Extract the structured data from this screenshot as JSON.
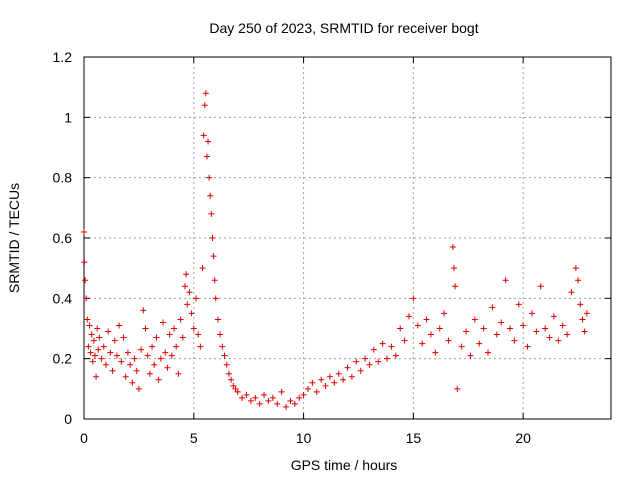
{
  "chart_data": {
    "type": "scatter",
    "title": "Day 250 of 2023, SRMTID for receiver bogt",
    "xlabel": "GPS time / hours",
    "ylabel": "SRMTID / TECUs",
    "xlim": [
      0,
      24
    ],
    "ylim": [
      0,
      1.2
    ],
    "xticks": [
      0,
      5,
      10,
      15,
      20
    ],
    "xtick_labels": [
      "0",
      "5",
      "10",
      "15",
      "20"
    ],
    "yticks": [
      0,
      0.2,
      0.4,
      0.6,
      0.8,
      1,
      1.2
    ],
    "ytick_labels": [
      "0",
      "0.2",
      "0.4",
      "0.6",
      "0.8",
      "1",
      "1.2"
    ],
    "grid": true,
    "marker": "+",
    "color": "#e00000",
    "series": [
      {
        "name": "SRMTID",
        "points": [
          [
            0.0,
            0.62
          ],
          [
            0.02,
            0.52
          ],
          [
            0.05,
            0.46
          ],
          [
            0.1,
            0.4
          ],
          [
            0.15,
            0.33
          ],
          [
            0.2,
            0.24
          ],
          [
            0.25,
            0.31
          ],
          [
            0.3,
            0.22
          ],
          [
            0.35,
            0.28
          ],
          [
            0.4,
            0.19
          ],
          [
            0.45,
            0.26
          ],
          [
            0.5,
            0.21
          ],
          [
            0.55,
            0.14
          ],
          [
            0.6,
            0.3
          ],
          [
            0.65,
            0.23
          ],
          [
            0.7,
            0.27
          ],
          [
            0.8,
            0.2
          ],
          [
            0.9,
            0.24
          ],
          [
            1.0,
            0.18
          ],
          [
            1.1,
            0.29
          ],
          [
            1.2,
            0.22
          ],
          [
            1.3,
            0.16
          ],
          [
            1.4,
            0.26
          ],
          [
            1.5,
            0.21
          ],
          [
            1.6,
            0.31
          ],
          [
            1.7,
            0.19
          ],
          [
            1.8,
            0.27
          ],
          [
            1.9,
            0.14
          ],
          [
            2.0,
            0.22
          ],
          [
            2.1,
            0.18
          ],
          [
            2.2,
            0.12
          ],
          [
            2.3,
            0.2
          ],
          [
            2.4,
            0.16
          ],
          [
            2.5,
            0.1
          ],
          [
            2.6,
            0.23
          ],
          [
            2.7,
            0.36
          ],
          [
            2.8,
            0.3
          ],
          [
            2.9,
            0.21
          ],
          [
            3.0,
            0.15
          ],
          [
            3.1,
            0.24
          ],
          [
            3.2,
            0.18
          ],
          [
            3.3,
            0.27
          ],
          [
            3.4,
            0.13
          ],
          [
            3.5,
            0.2
          ],
          [
            3.6,
            0.32
          ],
          [
            3.7,
            0.22
          ],
          [
            3.8,
            0.17
          ],
          [
            3.9,
            0.28
          ],
          [
            4.0,
            0.21
          ],
          [
            4.1,
            0.3
          ],
          [
            4.2,
            0.24
          ],
          [
            4.3,
            0.15
          ],
          [
            4.4,
            0.33
          ],
          [
            4.5,
            0.27
          ],
          [
            4.6,
            0.44
          ],
          [
            4.65,
            0.48
          ],
          [
            4.7,
            0.38
          ],
          [
            4.8,
            0.42
          ],
          [
            4.9,
            0.35
          ],
          [
            5.0,
            0.3
          ],
          [
            5.1,
            0.4
          ],
          [
            5.2,
            0.28
          ],
          [
            5.3,
            0.24
          ],
          [
            5.4,
            0.5
          ],
          [
            5.45,
            0.94
          ],
          [
            5.5,
            1.04
          ],
          [
            5.55,
            1.08
          ],
          [
            5.6,
            0.87
          ],
          [
            5.65,
            0.92
          ],
          [
            5.7,
            0.8
          ],
          [
            5.75,
            0.74
          ],
          [
            5.8,
            0.68
          ],
          [
            5.85,
            0.6
          ],
          [
            5.9,
            0.54
          ],
          [
            5.95,
            0.46
          ],
          [
            6.0,
            0.4
          ],
          [
            6.1,
            0.33
          ],
          [
            6.2,
            0.28
          ],
          [
            6.3,
            0.24
          ],
          [
            6.4,
            0.21
          ],
          [
            6.5,
            0.18
          ],
          [
            6.6,
            0.15
          ],
          [
            6.7,
            0.13
          ],
          [
            6.8,
            0.11
          ],
          [
            6.9,
            0.1
          ],
          [
            7.0,
            0.09
          ],
          [
            7.2,
            0.07
          ],
          [
            7.4,
            0.08
          ],
          [
            7.6,
            0.06
          ],
          [
            7.8,
            0.07
          ],
          [
            8.0,
            0.05
          ],
          [
            8.2,
            0.08
          ],
          [
            8.4,
            0.06
          ],
          [
            8.6,
            0.07
          ],
          [
            8.8,
            0.05
          ],
          [
            9.0,
            0.09
          ],
          [
            9.2,
            0.04
          ],
          [
            9.4,
            0.06
          ],
          [
            9.6,
            0.05
          ],
          [
            9.8,
            0.07
          ],
          [
            10.0,
            0.08
          ],
          [
            10.2,
            0.1
          ],
          [
            10.4,
            0.12
          ],
          [
            10.6,
            0.09
          ],
          [
            10.8,
            0.13
          ],
          [
            11.0,
            0.11
          ],
          [
            11.2,
            0.14
          ],
          [
            11.4,
            0.12
          ],
          [
            11.6,
            0.15
          ],
          [
            11.8,
            0.13
          ],
          [
            12.0,
            0.17
          ],
          [
            12.2,
            0.14
          ],
          [
            12.4,
            0.19
          ],
          [
            12.6,
            0.16
          ],
          [
            12.8,
            0.2
          ],
          [
            13.0,
            0.18
          ],
          [
            13.2,
            0.23
          ],
          [
            13.4,
            0.19
          ],
          [
            13.6,
            0.25
          ],
          [
            13.8,
            0.2
          ],
          [
            14.0,
            0.24
          ],
          [
            14.2,
            0.21
          ],
          [
            14.4,
            0.3
          ],
          [
            14.6,
            0.26
          ],
          [
            14.8,
            0.34
          ],
          [
            15.0,
            0.4
          ],
          [
            15.2,
            0.31
          ],
          [
            15.4,
            0.25
          ],
          [
            15.6,
            0.33
          ],
          [
            15.8,
            0.28
          ],
          [
            16.0,
            0.22
          ],
          [
            16.2,
            0.3
          ],
          [
            16.4,
            0.35
          ],
          [
            16.6,
            0.26
          ],
          [
            16.8,
            0.57
          ],
          [
            16.85,
            0.5
          ],
          [
            16.9,
            0.44
          ],
          [
            17.0,
            0.1
          ],
          [
            17.2,
            0.24
          ],
          [
            17.4,
            0.29
          ],
          [
            17.6,
            0.21
          ],
          [
            17.8,
            0.33
          ],
          [
            18.0,
            0.25
          ],
          [
            18.2,
            0.3
          ],
          [
            18.4,
            0.22
          ],
          [
            18.6,
            0.37
          ],
          [
            18.8,
            0.28
          ],
          [
            19.0,
            0.32
          ],
          [
            19.2,
            0.46
          ],
          [
            19.4,
            0.3
          ],
          [
            19.6,
            0.26
          ],
          [
            19.8,
            0.38
          ],
          [
            20.0,
            0.31
          ],
          [
            20.2,
            0.24
          ],
          [
            20.4,
            0.35
          ],
          [
            20.6,
            0.29
          ],
          [
            20.8,
            0.44
          ],
          [
            21.0,
            0.3
          ],
          [
            21.2,
            0.27
          ],
          [
            21.4,
            0.34
          ],
          [
            21.6,
            0.26
          ],
          [
            21.8,
            0.31
          ],
          [
            22.0,
            0.28
          ],
          [
            22.2,
            0.42
          ],
          [
            22.4,
            0.5
          ],
          [
            22.5,
            0.46
          ],
          [
            22.6,
            0.38
          ],
          [
            22.7,
            0.33
          ],
          [
            22.8,
            0.29
          ],
          [
            22.9,
            0.35
          ]
        ]
      }
    ]
  }
}
